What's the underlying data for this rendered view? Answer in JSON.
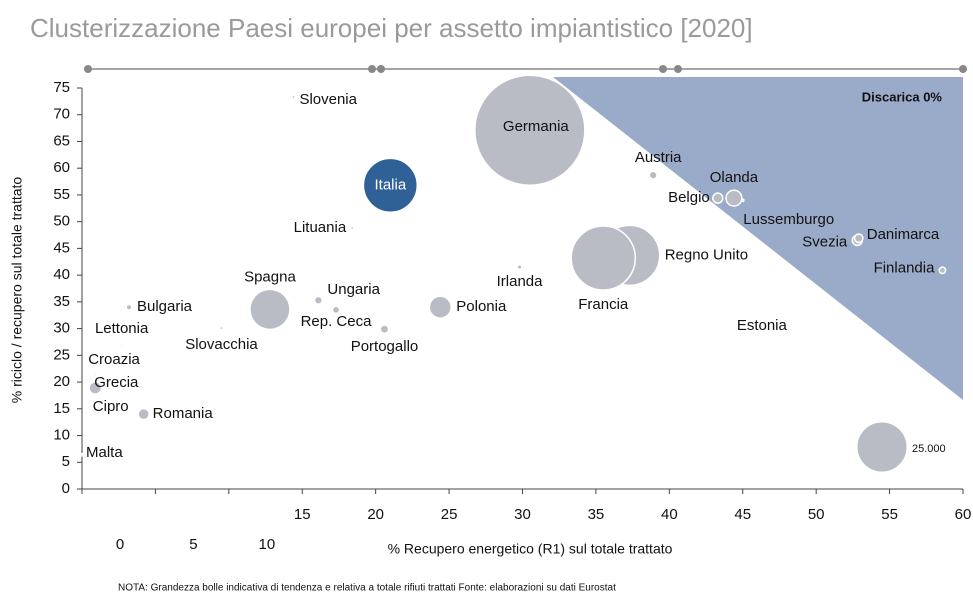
{
  "chart_data": {
    "type": "bubble",
    "title": "Clusterizzazione Paesi europei per assetto impiantistico  [2020]",
    "xlabel": "% Recupero energetico (R1) sul totale trattato",
    "ylabel": "% riciclo / recupero sul totale trattato",
    "annotation": "Discarica 0%",
    "note": "NOTA: Grandezza bolle indicativa di tendenza e relativa a totale rifiuti trattati  Fonte: elaborazioni su dati Eurostat",
    "xlim": [
      0,
      60
    ],
    "xticks": [
      0,
      5,
      10,
      15,
      20,
      25,
      30,
      35,
      40,
      45,
      50,
      55,
      60
    ],
    "ylim": [
      0,
      75
    ],
    "yticks": [
      0,
      5,
      10,
      15,
      20,
      25,
      30,
      35,
      40,
      45,
      50,
      55,
      60,
      65,
      70,
      75
    ],
    "color": "#b9bcc4",
    "highlight_color": "#2f6096",
    "highlight": "Italia",
    "region_color": "#9aabc9",
    "size_legend": {
      "value": 25000,
      "label": "25.000"
    },
    "points": [
      {
        "name": "Slovenia",
        "x": 14.4,
        "y": 73.3,
        "size": 100
      },
      {
        "name": "Germania",
        "x": 30.5,
        "y": 67.1,
        "size": 121000
      },
      {
        "name": "Italia",
        "x": 21.0,
        "y": 56.8,
        "size": 29000
      },
      {
        "name": "Austria",
        "x": 38.9,
        "y": 58.7,
        "size": 600
      },
      {
        "name": "Olanda",
        "x": 44.4,
        "y": 54.4,
        "size": 2500
      },
      {
        "name": "Belgio",
        "x": 43.3,
        "y": 54.4,
        "size": 1000
      },
      {
        "name": "Lussemburgo",
        "x": 45.0,
        "y": 54.0,
        "size": 50
      },
      {
        "name": "Svezia",
        "x": 52.8,
        "y": 46.5,
        "size": 1000
      },
      {
        "name": "Danimarca",
        "x": 52.9,
        "y": 46.9,
        "size": 700
      },
      {
        "name": "Finlandia",
        "x": 58.6,
        "y": 40.9,
        "size": 400
      },
      {
        "name": "Regno Unito",
        "x": 37.3,
        "y": 43.7,
        "size": 36000
      },
      {
        "name": "Francia",
        "x": 35.5,
        "y": 43.2,
        "size": 41000
      },
      {
        "name": "Irlanda",
        "x": 29.8,
        "y": 41.5,
        "size": 200
      },
      {
        "name": "Polonia",
        "x": 24.4,
        "y": 34.0,
        "size": 4800
      },
      {
        "name": "Spagna",
        "x": 12.8,
        "y": 33.6,
        "size": 16000
      },
      {
        "name": "Ungaria",
        "x": 16.1,
        "y": 35.3,
        "size": 600
      },
      {
        "name": "Rep. Ceca",
        "x": 17.3,
        "y": 33.5,
        "size": 500
      },
      {
        "name": "Portogallo",
        "x": 20.6,
        "y": 29.9,
        "size": 700
      },
      {
        "name": "Lituania",
        "x": 18.4,
        "y": 48.8,
        "size": 100
      },
      {
        "name": "Slovacchia",
        "x": 9.5,
        "y": 30.1,
        "size": 100
      },
      {
        "name": "Bulgaria",
        "x": 3.2,
        "y": 34.0,
        "size": 300
      },
      {
        "name": "Lettonia",
        "x": 2.7,
        "y": 26.9,
        "size": 50
      },
      {
        "name": "Croazia",
        "x": 0.9,
        "y": 21.5,
        "size": 50
      },
      {
        "name": "Grecia",
        "x": 0.9,
        "y": 18.9,
        "size": 1500
      },
      {
        "name": "Cipro",
        "x": 0.6,
        "y": 16.6,
        "size": 50
      },
      {
        "name": "Romania",
        "x": 4.2,
        "y": 14.0,
        "size": 1200
      },
      {
        "name": "Malta",
        "x": 0.0,
        "y": 6.4,
        "size": 50
      },
      {
        "name": "Estonia",
        "x": 46.3,
        "y": 30.5,
        "size": 50
      }
    ]
  }
}
